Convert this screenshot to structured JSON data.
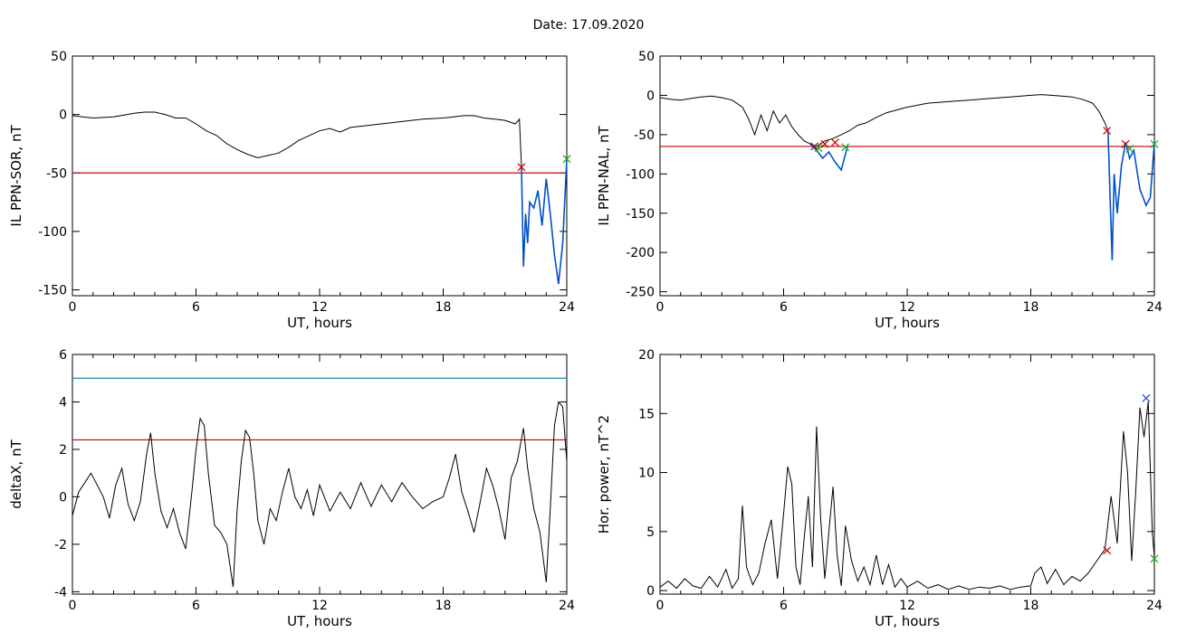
{
  "date_title": "Date:  17.09.2020",
  "colors": {
    "trace": "#000000",
    "storm": "#0050c8",
    "threshold": "#cc0000",
    "cyan_line": "#1a8caa",
    "start_marker": "#cc0000",
    "end_marker": "#22aa22",
    "peak_marker": "#2255cc"
  },
  "chart_data": [
    {
      "type": "line",
      "id": "sor",
      "xlabel": "UT, hours",
      "ylabel": "IL PPN-SOR, nT",
      "xlim": [
        0,
        24
      ],
      "ylim": [
        -155,
        50
      ],
      "xticks": [
        0,
        6,
        12,
        18,
        24
      ],
      "yticks": [
        50,
        0,
        -50,
        -100,
        -150
      ],
      "threshold": -50,
      "series": [
        {
          "x": [
            0,
            0.5,
            1,
            2,
            3,
            3.5,
            4,
            4.5,
            5,
            5.5,
            6,
            6.5,
            7,
            7.5,
            8,
            8.5,
            9,
            9.5,
            10,
            10.5,
            11,
            11.5,
            12,
            12.5,
            13,
            13.5,
            14,
            15,
            16,
            17,
            18,
            18.5,
            19,
            19.5,
            20,
            20.5,
            21,
            21.5,
            21.7,
            21.8
          ],
          "y": [
            -1,
            -2,
            -3,
            -2,
            1,
            2,
            2,
            0,
            -3,
            -3,
            -8,
            -14,
            -18,
            -25,
            -30,
            -34,
            -37,
            -35,
            -33,
            -28,
            -22,
            -18,
            -14,
            -12,
            -15,
            -11,
            -10,
            -8,
            -6,
            -4,
            -3,
            -2,
            -1,
            -1,
            -3,
            -4,
            -5,
            -8,
            -4,
            -45
          ]
        },
        {
          "x": [
            21.8,
            21.85,
            21.9,
            22.0,
            22.1,
            22.2,
            22.4,
            22.6,
            22.8,
            23.0,
            23.2,
            23.4,
            23.6,
            23.8,
            24.0
          ],
          "y": [
            -45,
            -90,
            -130,
            -85,
            -110,
            -75,
            -80,
            -65,
            -95,
            -55,
            -85,
            -120,
            -145,
            -110,
            -38
          ]
        }
      ],
      "markers": [
        {
          "x": 21.8,
          "y": -45,
          "kind": "start"
        },
        {
          "x": 24.0,
          "y": -38,
          "kind": "end"
        }
      ]
    },
    {
      "type": "line",
      "id": "nal",
      "xlabel": "UT, hours",
      "ylabel": "IL PPN-NAL, nT",
      "xlim": [
        0,
        24
      ],
      "ylim": [
        -255,
        50
      ],
      "xticks": [
        0,
        6,
        12,
        18,
        24
      ],
      "yticks": [
        50,
        0,
        -50,
        -100,
        -150,
        -200,
        -250
      ],
      "threshold": -65,
      "series": [
        {
          "x": [
            0,
            0.5,
            1,
            1.5,
            2,
            2.5,
            3,
            3.5,
            4,
            4.3,
            4.6,
            4.9,
            5.2,
            5.5,
            5.8,
            6.1,
            6.4,
            6.7,
            7.0,
            7.3,
            7.6,
            8.0,
            8.4,
            8.8,
            9.2,
            9.6,
            10,
            10.5,
            11,
            12,
            13,
            14,
            15,
            16,
            17,
            18,
            18.5,
            19,
            19.5,
            20,
            20.5,
            21,
            21.3,
            21.6,
            21.75
          ],
          "y": [
            -3,
            -5,
            -6,
            -4,
            -2,
            -1,
            -3,
            -6,
            -15,
            -30,
            -50,
            -25,
            -45,
            -20,
            -35,
            -25,
            -40,
            -50,
            -58,
            -62,
            -65,
            -58,
            -55,
            -50,
            -45,
            -38,
            -35,
            -28,
            -22,
            -15,
            -10,
            -8,
            -6,
            -4,
            -2,
            0,
            1,
            0,
            -1,
            -2,
            -5,
            -10,
            -20,
            -35,
            -45
          ]
        },
        {
          "x": [
            7.3,
            7.6,
            7.9,
            8.2,
            8.5,
            8.8,
            9.1
          ],
          "y": [
            -62,
            -70,
            -80,
            -72,
            -85,
            -95,
            -65
          ]
        },
        {
          "x": [
            21.75,
            21.85,
            21.95,
            22.05,
            22.2,
            22.4,
            22.6,
            22.8,
            23.0,
            23.3,
            23.6,
            23.8,
            24.0
          ],
          "y": [
            -45,
            -130,
            -210,
            -100,
            -150,
            -90,
            -60,
            -80,
            -70,
            -120,
            -140,
            -130,
            -60
          ]
        }
      ],
      "markers": [
        {
          "x": 7.5,
          "y": -65,
          "kind": "start"
        },
        {
          "x": 8.0,
          "y": -62,
          "kind": "start"
        },
        {
          "x": 8.5,
          "y": -60,
          "kind": "start"
        },
        {
          "x": 7.7,
          "y": -67,
          "kind": "end"
        },
        {
          "x": 9.0,
          "y": -66,
          "kind": "end"
        },
        {
          "x": 21.7,
          "y": -45,
          "kind": "start"
        },
        {
          "x": 22.6,
          "y": -62,
          "kind": "start"
        },
        {
          "x": 22.8,
          "y": -68,
          "kind": "end"
        },
        {
          "x": 24.0,
          "y": -62,
          "kind": "end"
        }
      ]
    },
    {
      "type": "line",
      "id": "deltax",
      "xlabel": "UT, hours",
      "ylabel": "deltaX, nT",
      "xlim": [
        0,
        24
      ],
      "ylim": [
        -4.1,
        6
      ],
      "xticks": [
        0,
        6,
        12,
        18,
        24
      ],
      "yticks": [
        6,
        4,
        2,
        0,
        -2,
        -4
      ],
      "threshold": 2.4,
      "upper_line": 5,
      "series": [
        {
          "x": [
            0,
            0.3,
            0.6,
            0.9,
            1.2,
            1.5,
            1.8,
            2.1,
            2.4,
            2.7,
            3.0,
            3.3,
            3.6,
            3.8,
            4.0,
            4.3,
            4.6,
            4.9,
            5.2,
            5.5,
            5.8,
            6.0,
            6.2,
            6.4,
            6.6,
            6.9,
            7.2,
            7.5,
            7.8,
            8.0,
            8.2,
            8.4,
            8.6,
            8.8,
            9.0,
            9.3,
            9.6,
            9.9,
            10.2,
            10.5,
            10.8,
            11.1,
            11.4,
            11.7,
            12.0,
            12.5,
            13.0,
            13.5,
            14.0,
            14.5,
            15.0,
            15.5,
            16.0,
            16.5,
            17.0,
            17.5,
            18.0,
            18.3,
            18.6,
            18.9,
            19.2,
            19.5,
            19.8,
            20.1,
            20.4,
            20.7,
            21.0,
            21.3,
            21.6,
            21.9,
            22.1,
            22.4,
            22.7,
            23.0,
            23.2,
            23.4,
            23.6,
            23.8,
            24.0
          ],
          "y": [
            -0.8,
            0.2,
            0.6,
            1.0,
            0.5,
            0.0,
            -0.9,
            0.5,
            1.2,
            -0.3,
            -1.0,
            -0.2,
            1.8,
            2.7,
            1.0,
            -0.6,
            -1.3,
            -0.5,
            -1.5,
            -2.2,
            0.2,
            2.0,
            3.3,
            3.0,
            1.0,
            -1.2,
            -1.5,
            -2.0,
            -3.8,
            -0.5,
            1.5,
            2.8,
            2.5,
            1.0,
            -1.0,
            -2.0,
            -0.5,
            -1.0,
            0.2,
            1.2,
            0.0,
            -0.5,
            0.3,
            -0.8,
            0.5,
            -0.6,
            0.2,
            -0.5,
            0.6,
            -0.4,
            0.5,
            -0.2,
            0.6,
            0.0,
            -0.5,
            -0.2,
            0.0,
            0.8,
            1.8,
            0.2,
            -0.6,
            -1.5,
            -0.2,
            1.2,
            0.5,
            -0.5,
            -1.8,
            0.8,
            1.5,
            2.9,
            1.2,
            -0.5,
            -1.5,
            -3.6,
            -0.5,
            3.0,
            4.0,
            3.8,
            1.5
          ]
        }
      ]
    },
    {
      "type": "line",
      "id": "power",
      "xlabel": "UT, hours",
      "ylabel": "Hor. power, nT^2",
      "xlim": [
        0,
        24
      ],
      "ylim": [
        -0.3,
        20
      ],
      "xticks": [
        0,
        6,
        12,
        18,
        24
      ],
      "yticks": [
        20,
        15,
        10,
        5,
        0
      ],
      "series": [
        {
          "x": [
            0,
            0.4,
            0.8,
            1.2,
            1.6,
            2.0,
            2.4,
            2.8,
            3.2,
            3.5,
            3.8,
            4.0,
            4.2,
            4.5,
            4.8,
            5.1,
            5.4,
            5.7,
            6.0,
            6.2,
            6.4,
            6.6,
            6.8,
            7.0,
            7.2,
            7.4,
            7.6,
            7.8,
            8.0,
            8.2,
            8.4,
            8.6,
            8.8,
            9.0,
            9.3,
            9.6,
            9.9,
            10.2,
            10.5,
            10.8,
            11.1,
            11.4,
            11.7,
            12.0,
            12.5,
            13.0,
            13.5,
            14.0,
            14.5,
            15.0,
            15.5,
            16.0,
            16.5,
            17.0,
            17.5,
            18.0,
            18.2,
            18.5,
            18.8,
            19.2,
            19.6,
            20.0,
            20.4,
            20.8,
            21.2,
            21.6,
            21.9,
            22.2,
            22.5,
            22.7,
            22.9,
            23.1,
            23.3,
            23.5,
            23.7,
            23.9,
            24.0
          ],
          "y": [
            0.3,
            0.8,
            0.2,
            1.0,
            0.4,
            0.2,
            1.2,
            0.3,
            1.8,
            0.2,
            1.0,
            7.2,
            2.0,
            0.5,
            1.5,
            4.0,
            6.0,
            1.0,
            6.5,
            10.5,
            9.0,
            2.0,
            0.5,
            4.5,
            8.0,
            2.0,
            13.9,
            6.0,
            1.0,
            5.0,
            8.8,
            3.0,
            0.4,
            5.5,
            2.5,
            0.8,
            2.0,
            0.5,
            3.0,
            0.5,
            2.2,
            0.3,
            1.0,
            0.3,
            0.8,
            0.2,
            0.5,
            0.1,
            0.4,
            0.1,
            0.3,
            0.2,
            0.4,
            0.1,
            0.3,
            0.4,
            1.5,
            2.0,
            0.6,
            1.8,
            0.5,
            1.2,
            0.8,
            1.5,
            2.5,
            3.5,
            8.0,
            4.0,
            13.5,
            10.0,
            2.5,
            8.5,
            15.5,
            13.0,
            16.0,
            5.0,
            2.8
          ]
        }
      ],
      "markers": [
        {
          "x": 21.7,
          "y": 3.4,
          "kind": "start"
        },
        {
          "x": 23.6,
          "y": 16.3,
          "kind": "peak"
        },
        {
          "x": 24.0,
          "y": 2.7,
          "kind": "end"
        }
      ]
    }
  ]
}
